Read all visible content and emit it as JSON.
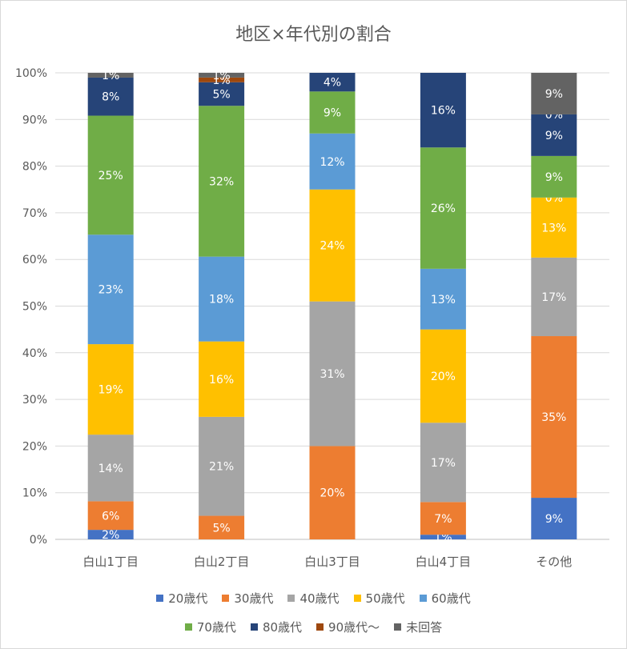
{
  "chart_data": {
    "type": "bar",
    "stacked": true,
    "normalized": true,
    "title": "地区×年代別の割合",
    "categories": [
      "白山1丁目",
      "白山2丁目",
      "白山3丁目",
      "白山4丁目",
      "その他"
    ],
    "ylim": [
      0,
      100
    ],
    "yticks": [
      "0%",
      "10%",
      "20%",
      "30%",
      "40%",
      "50%",
      "60%",
      "70%",
      "80%",
      "90%",
      "100%"
    ],
    "grid": true,
    "legend_position": "bottom",
    "series": [
      {
        "name": "20歳代",
        "color": "#4472C4",
        "values": [
          2,
          0,
          0,
          1,
          9
        ],
        "labels": [
          "2%",
          "",
          "",
          "1%",
          "9%"
        ]
      },
      {
        "name": "30歳代",
        "color": "#ED7D31",
        "values": [
          6,
          5,
          20,
          7,
          35
        ],
        "labels": [
          "6%",
          "5%",
          "20%",
          "7%",
          "35%"
        ]
      },
      {
        "name": "40歳代",
        "color": "#A5A5A5",
        "values": [
          14,
          21,
          31,
          17,
          17
        ],
        "labels": [
          "14%",
          "21%",
          "31%",
          "17%",
          "17%"
        ]
      },
      {
        "name": "50歳代",
        "color": "#FFC000",
        "values": [
          19,
          16,
          24,
          20,
          13
        ],
        "labels": [
          "19%",
          "16%",
          "24%",
          "20%",
          "13%"
        ]
      },
      {
        "name": "60歳代",
        "color": "#5B9BD5",
        "values": [
          23,
          18,
          12,
          13,
          0
        ],
        "labels": [
          "23%",
          "18%",
          "12%",
          "13%",
          "0%"
        ]
      },
      {
        "name": "70歳代",
        "color": "#70AD47",
        "values": [
          25,
          32,
          9,
          26,
          9
        ],
        "labels": [
          "25%",
          "32%",
          "9%",
          "26%",
          "9%"
        ]
      },
      {
        "name": "80歳代",
        "color": "#264478",
        "values": [
          8,
          5,
          4,
          16,
          9
        ],
        "labels": [
          "8%",
          "5%",
          "4%",
          "16%",
          "9%"
        ]
      },
      {
        "name": "90歳代～",
        "color": "#9E480E",
        "values": [
          0,
          1,
          0,
          0,
          0
        ],
        "labels": [
          "",
          "1%",
          "",
          "",
          "0%"
        ]
      },
      {
        "name": "未回答",
        "color": "#636363",
        "values": [
          1,
          1,
          0,
          0,
          9
        ],
        "labels": [
          "1%",
          "1%",
          "",
          "",
          "9%"
        ]
      }
    ]
  }
}
